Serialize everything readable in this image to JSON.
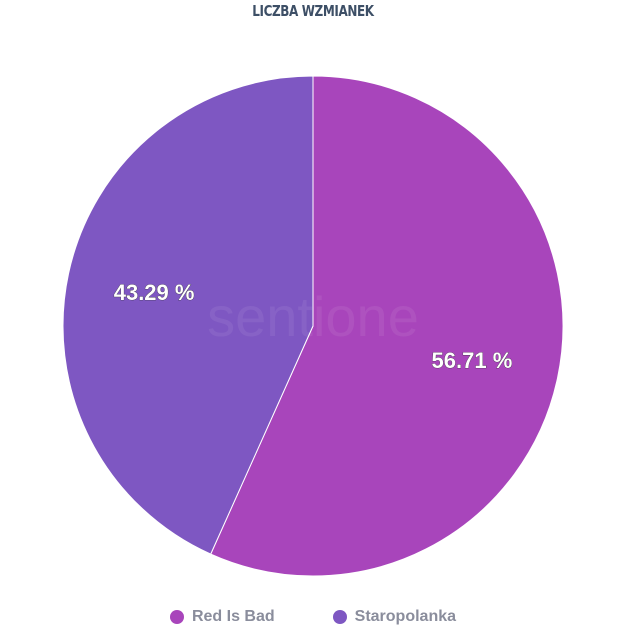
{
  "chart_data": {
    "type": "pie",
    "title": "LICZBA WZMIANEK",
    "start_angle": "top",
    "direction": "clockwise",
    "slices": [
      {
        "label": "Red Is Bad",
        "value": 56.71,
        "display": "56.71 %",
        "color": "#a845bb"
      },
      {
        "label": "Staropolanka",
        "value": 43.29,
        "display": "43.29 %",
        "color": "#7e57c2"
      }
    ],
    "legend": "bottom",
    "watermark": "sentione"
  }
}
